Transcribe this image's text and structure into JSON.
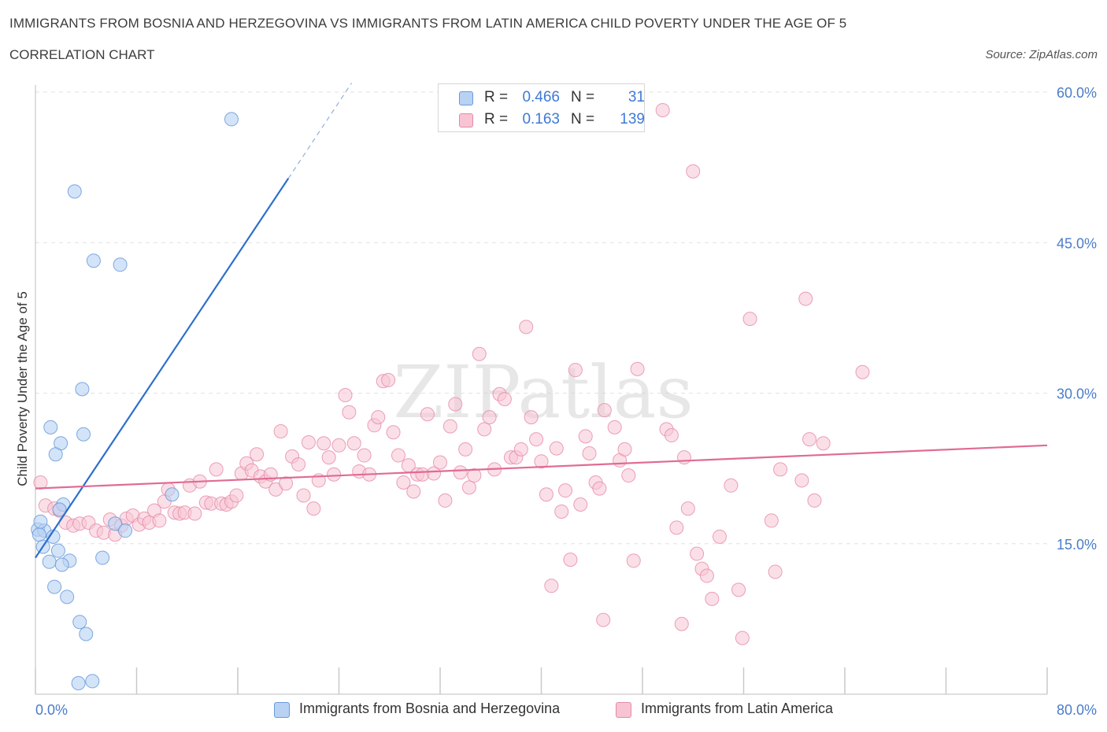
{
  "header": {
    "title": "IMMIGRANTS FROM BOSNIA AND HERZEGOVINA VS IMMIGRANTS FROM LATIN AMERICA CHILD POVERTY UNDER THE AGE OF 5",
    "subtitle": "CORRELATION CHART",
    "source": "Source: ZipAtlas.com"
  },
  "watermark": "ZIPatlas",
  "legend": {
    "rows": [
      {
        "r_label": "R =",
        "r_value": "0.466",
        "n_label": "N =",
        "n_value": "31"
      },
      {
        "r_label": "R =",
        "r_value": "0.163",
        "n_label": "N =",
        "n_value": "139"
      }
    ]
  },
  "colors": {
    "blue_fill": "#b8d2f4",
    "blue_stroke": "#6a9ad9",
    "blue_line": "#2e6fcb",
    "pink_fill": "#f8c4d4",
    "pink_stroke": "#e58aa8",
    "pink_line": "#e06b93",
    "tick_text": "#4a7cc9",
    "grid": "#e2e2e2"
  },
  "chart_data": {
    "type": "scatter",
    "title": "IMMIGRANTS FROM BOSNIA AND HERZEGOVINA VS IMMIGRANTS FROM LATIN AMERICA CHILD POVERTY UNDER THE AGE OF 5",
    "xlabel": "",
    "ylabel": "Child Poverty Under the Age of 5",
    "xlim": [
      0,
      80
    ],
    "ylim": [
      0,
      60
    ],
    "x_tick_labels": [
      "0.0%",
      "80.0%"
    ],
    "y_ticks": [
      15,
      30,
      45,
      60
    ],
    "y_tick_labels": [
      "15.0%",
      "30.0%",
      "45.0%",
      "60.0%"
    ],
    "grid": true,
    "series": [
      {
        "name": "Immigrants from Bosnia and Herzegovina",
        "color": "#b8d2f4",
        "trend": {
          "x0": 0,
          "y0": 13.6,
          "x1": 20,
          "y1": 51.4,
          "dash_x1": 25,
          "dash_y1": 60.9
        },
        "points": [
          [
            15.5,
            57.3
          ],
          [
            3.1,
            50.1
          ],
          [
            4.6,
            43.2
          ],
          [
            6.7,
            42.8
          ],
          [
            3.7,
            30.4
          ],
          [
            1.2,
            26.6
          ],
          [
            3.8,
            25.9
          ],
          [
            2.0,
            25.0
          ],
          [
            1.6,
            23.9
          ],
          [
            2.2,
            18.9
          ],
          [
            10.8,
            19.9
          ],
          [
            1.9,
            18.4
          ],
          [
            0.2,
            16.4
          ],
          [
            0.7,
            16.3
          ],
          [
            0.3,
            15.9
          ],
          [
            1.4,
            15.7
          ],
          [
            6.3,
            17.0
          ],
          [
            7.1,
            16.3
          ],
          [
            0.6,
            14.7
          ],
          [
            1.8,
            14.3
          ],
          [
            1.1,
            13.2
          ],
          [
            2.7,
            13.3
          ],
          [
            2.1,
            12.9
          ],
          [
            5.3,
            13.6
          ],
          [
            1.5,
            10.7
          ],
          [
            2.5,
            9.7
          ],
          [
            3.5,
            7.2
          ],
          [
            4.0,
            6.0
          ],
          [
            3.4,
            1.1
          ],
          [
            4.5,
            1.3
          ],
          [
            0.4,
            17.2
          ]
        ]
      },
      {
        "name": "Immigrants from Latin America",
        "color": "#f8c4d4",
        "trend": {
          "x0": 0,
          "y0": 20.5,
          "x1": 80,
          "y1": 24.8
        },
        "points": [
          [
            0.4,
            21.1
          ],
          [
            0.8,
            18.8
          ],
          [
            1.5,
            18.5
          ],
          [
            1.9,
            18.3
          ],
          [
            2.4,
            17.1
          ],
          [
            3.0,
            16.8
          ],
          [
            3.5,
            17.0
          ],
          [
            4.2,
            17.1
          ],
          [
            4.8,
            16.3
          ],
          [
            5.4,
            16.1
          ],
          [
            5.9,
            17.4
          ],
          [
            6.3,
            15.9
          ],
          [
            6.8,
            16.8
          ],
          [
            7.2,
            17.5
          ],
          [
            7.7,
            17.8
          ],
          [
            8.2,
            16.9
          ],
          [
            8.6,
            17.5
          ],
          [
            9.0,
            17.1
          ],
          [
            9.4,
            18.3
          ],
          [
            9.8,
            17.3
          ],
          [
            10.2,
            19.2
          ],
          [
            10.5,
            20.4
          ],
          [
            11.0,
            18.1
          ],
          [
            11.4,
            18.0
          ],
          [
            11.8,
            18.1
          ],
          [
            12.2,
            20.8
          ],
          [
            12.6,
            18.0
          ],
          [
            13.0,
            21.2
          ],
          [
            13.5,
            19.1
          ],
          [
            13.9,
            19.0
          ],
          [
            14.3,
            22.4
          ],
          [
            14.7,
            19.0
          ],
          [
            15.1,
            18.9
          ],
          [
            15.5,
            19.2
          ],
          [
            15.9,
            19.8
          ],
          [
            16.3,
            22.0
          ],
          [
            16.7,
            23.0
          ],
          [
            17.1,
            22.3
          ],
          [
            17.5,
            23.9
          ],
          [
            17.8,
            21.7
          ],
          [
            18.2,
            21.2
          ],
          [
            18.6,
            21.9
          ],
          [
            19.0,
            20.4
          ],
          [
            19.4,
            26.2
          ],
          [
            19.8,
            21.0
          ],
          [
            20.3,
            23.7
          ],
          [
            20.8,
            22.9
          ],
          [
            21.2,
            19.8
          ],
          [
            21.6,
            25.1
          ],
          [
            22.0,
            18.5
          ],
          [
            22.4,
            21.3
          ],
          [
            22.8,
            25.0
          ],
          [
            23.2,
            23.6
          ],
          [
            23.6,
            21.9
          ],
          [
            24.0,
            24.8
          ],
          [
            24.5,
            29.8
          ],
          [
            24.8,
            28.1
          ],
          [
            25.2,
            25.0
          ],
          [
            25.6,
            22.2
          ],
          [
            26.0,
            23.8
          ],
          [
            26.4,
            21.9
          ],
          [
            26.8,
            26.8
          ],
          [
            27.1,
            27.6
          ],
          [
            27.5,
            31.2
          ],
          [
            27.9,
            31.3
          ],
          [
            28.3,
            26.1
          ],
          [
            28.7,
            23.8
          ],
          [
            29.1,
            21.1
          ],
          [
            29.5,
            22.8
          ],
          [
            29.9,
            20.2
          ],
          [
            30.2,
            21.9
          ],
          [
            30.6,
            21.9
          ],
          [
            31.0,
            27.9
          ],
          [
            31.5,
            22.0
          ],
          [
            32.0,
            23.1
          ],
          [
            32.4,
            19.3
          ],
          [
            32.8,
            26.7
          ],
          [
            33.2,
            28.9
          ],
          [
            33.6,
            22.1
          ],
          [
            34.0,
            24.4
          ],
          [
            34.3,
            20.6
          ],
          [
            34.7,
            21.8
          ],
          [
            35.1,
            33.9
          ],
          [
            35.5,
            26.4
          ],
          [
            35.9,
            27.6
          ],
          [
            36.3,
            22.4
          ],
          [
            36.7,
            29.9
          ],
          [
            37.1,
            29.4
          ],
          [
            37.6,
            23.6
          ],
          [
            38.0,
            23.6
          ],
          [
            38.4,
            24.4
          ],
          [
            38.8,
            36.6
          ],
          [
            39.2,
            27.6
          ],
          [
            39.6,
            25.4
          ],
          [
            40.0,
            23.2
          ],
          [
            40.4,
            19.9
          ],
          [
            40.8,
            10.8
          ],
          [
            41.2,
            24.5
          ],
          [
            41.6,
            18.2
          ],
          [
            41.9,
            20.3
          ],
          [
            42.3,
            13.4
          ],
          [
            42.7,
            32.3
          ],
          [
            43.1,
            18.9
          ],
          [
            43.5,
            25.7
          ],
          [
            43.8,
            24.0
          ],
          [
            44.3,
            21.1
          ],
          [
            44.6,
            20.5
          ],
          [
            44.9,
            7.4
          ],
          [
            45.0,
            28.3
          ],
          [
            45.8,
            26.6
          ],
          [
            46.2,
            23.3
          ],
          [
            46.6,
            24.4
          ],
          [
            46.9,
            21.8
          ],
          [
            47.3,
            13.3
          ],
          [
            47.6,
            32.4
          ],
          [
            49.6,
            58.2
          ],
          [
            49.9,
            26.4
          ],
          [
            50.3,
            25.8
          ],
          [
            50.7,
            16.6
          ],
          [
            51.1,
            7.0
          ],
          [
            51.3,
            23.6
          ],
          [
            51.6,
            18.5
          ],
          [
            52.0,
            52.1
          ],
          [
            52.3,
            14.0
          ],
          [
            52.7,
            12.5
          ],
          [
            53.1,
            11.8
          ],
          [
            53.5,
            9.5
          ],
          [
            54.1,
            15.7
          ],
          [
            55.0,
            20.8
          ],
          [
            55.6,
            10.4
          ],
          [
            55.9,
            5.6
          ],
          [
            56.5,
            37.4
          ],
          [
            58.2,
            17.3
          ],
          [
            58.5,
            12.2
          ],
          [
            58.9,
            22.4
          ],
          [
            60.6,
            21.3
          ],
          [
            60.9,
            39.4
          ],
          [
            61.2,
            25.4
          ],
          [
            61.6,
            19.3
          ],
          [
            62.3,
            25.0
          ],
          [
            65.4,
            32.1
          ]
        ]
      }
    ]
  },
  "bottom_legend": [
    {
      "label": "Immigrants from Bosnia and Herzegovina"
    },
    {
      "label": "Immigrants from Latin America"
    }
  ]
}
